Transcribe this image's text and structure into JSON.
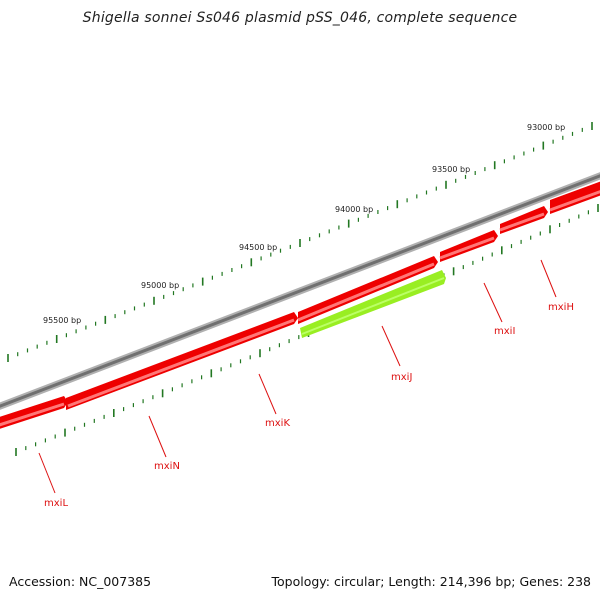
{
  "title": "Shigella sonnei Ss046 plasmid pSS_046, complete sequence",
  "footer": {
    "accession": "Accession: NC_007385",
    "summary": "Topology: circular; Length: 214,396 bp; Genes: 238"
  },
  "bp_labels": [
    "93000 bp",
    "93500 bp",
    "94000 bp",
    "94500 bp",
    "95000 bp",
    "95500 bp"
  ],
  "genes": [
    {
      "name": "mxiH",
      "strand": "forward",
      "color": "#ff0000"
    },
    {
      "name": "mxiI",
      "strand": "forward",
      "color": "#ff0000"
    },
    {
      "name": "mxiJ",
      "strand": "reverse",
      "color": "#99ee22"
    },
    {
      "name": "mxiK",
      "strand": "forward",
      "color": "#ff0000"
    },
    {
      "name": "mxiN",
      "strand": "forward",
      "color": "#ff0000"
    },
    {
      "name": "mxiL",
      "strand": "forward",
      "color": "#ff0000"
    }
  ],
  "colors": {
    "backbone": "#808080",
    "forward_gene": "#ff0000",
    "reverse_gene": "#99ee22",
    "tick": "#227722",
    "label": "#dd1111"
  }
}
